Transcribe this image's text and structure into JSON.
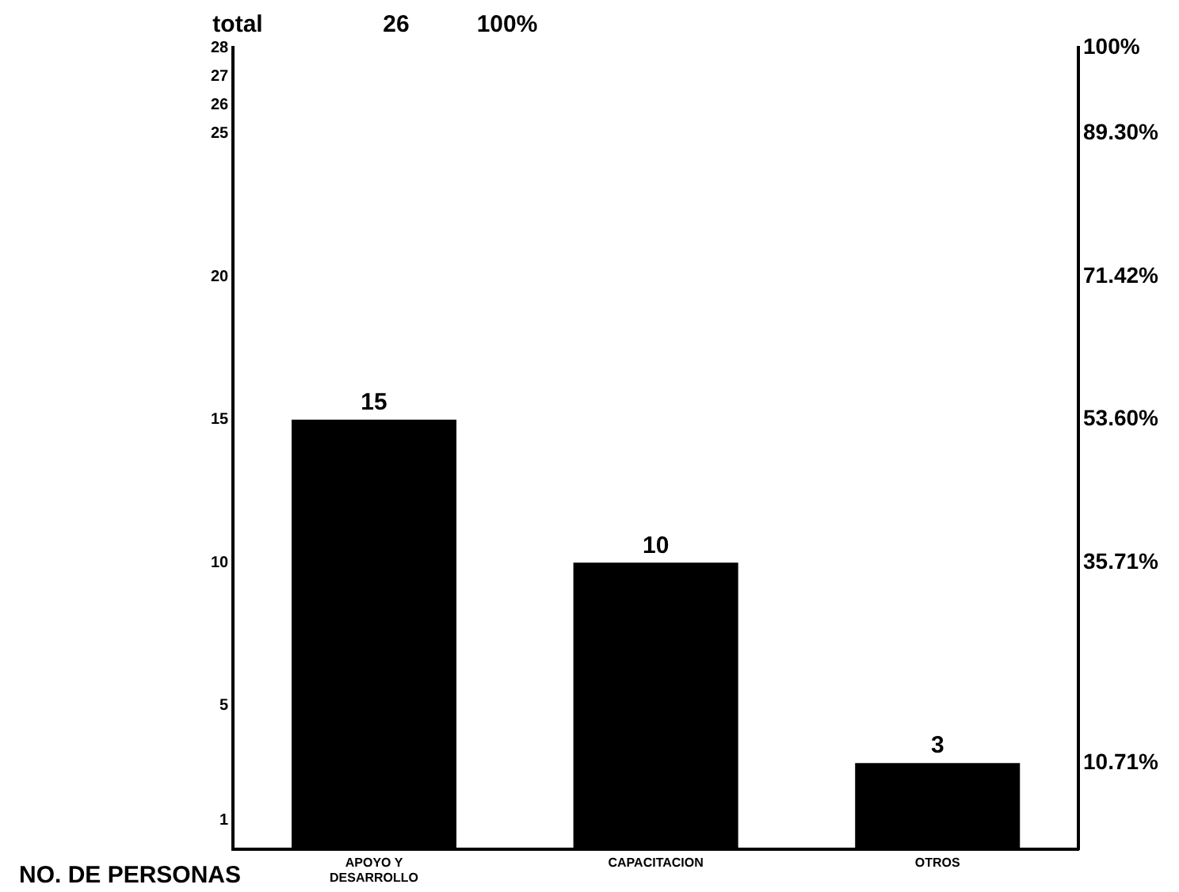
{
  "chart_data": {
    "type": "bar",
    "ylabel": "NO. DE PERSONAS",
    "annotations": [
      "total",
      "26",
      "100%"
    ],
    "categories": [
      "APOYO Y DESARROLLO",
      "CAPACITACION",
      "OTROS"
    ],
    "values": [
      15,
      10,
      3
    ],
    "color": "#000000",
    "data_labels": true,
    "ylim": [
      0,
      28
    ],
    "yticks": [
      1,
      5,
      10,
      15,
      20,
      25,
      26,
      27,
      28
    ],
    "y2lim": [
      0,
      100
    ],
    "y2ticks": [
      {
        "value": 10.71,
        "label": "10.71%"
      },
      {
        "value": 35.71,
        "label": "35.71%"
      },
      {
        "value": 53.6,
        "label": "53.60%"
      },
      {
        "value": 71.42,
        "label": "71.42%"
      },
      {
        "value": 89.3,
        "label": "89.30%"
      },
      {
        "value": 100,
        "label": "100%"
      }
    ],
    "grid": false,
    "legend": false
  }
}
